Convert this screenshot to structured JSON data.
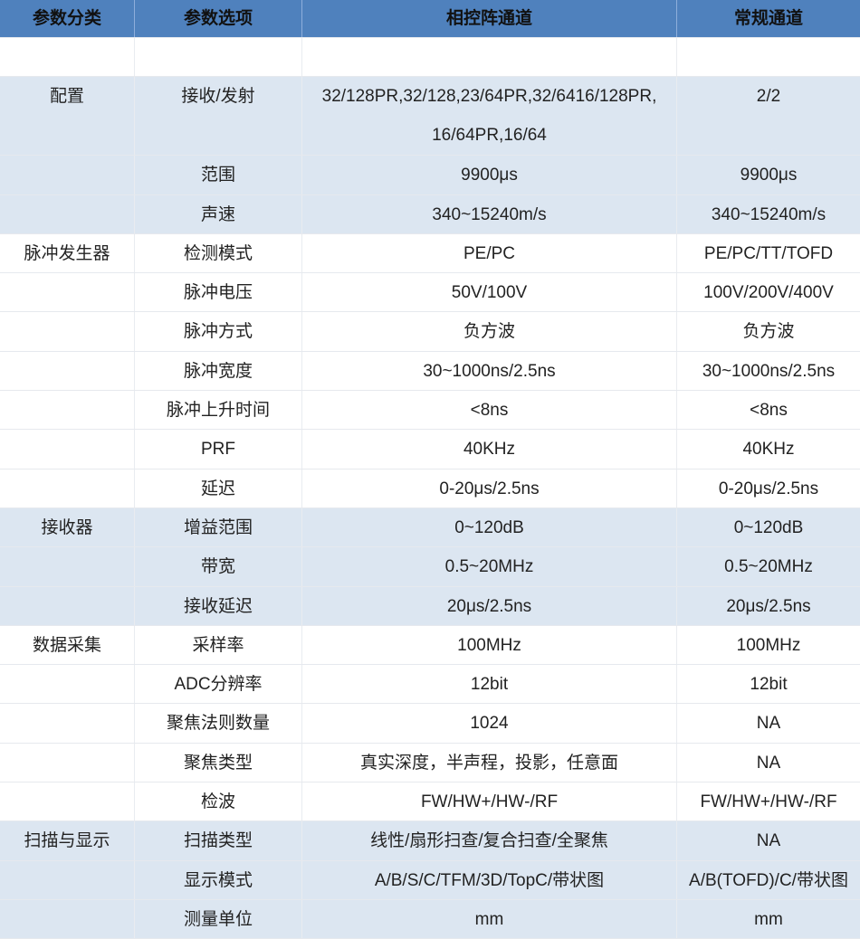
{
  "header": [
    "参数分类",
    "参数选项",
    "相控阵通道",
    "常规通道"
  ],
  "colors": {
    "header_bg": "#4f81bd",
    "band_bg": "#dce6f1",
    "plain_bg": "#ffffff"
  },
  "rows": [
    {
      "cat": "",
      "opt": "",
      "pa": "",
      "conv": "",
      "band": "white"
    },
    {
      "cat": "配置",
      "opt": "接收/发射",
      "pa": "32/128PR,32/128,23/64PR,32/6416/128PR, 16/64PR,16/64",
      "conv": "2/2",
      "band": "blue",
      "tall": true
    },
    {
      "cat": "",
      "opt": "范围",
      "pa": "9900μs",
      "conv": "9900μs",
      "band": "blue"
    },
    {
      "cat": "",
      "opt": "声速",
      "pa": "340~15240m/s",
      "conv": "340~15240m/s",
      "band": "blue"
    },
    {
      "cat": "脉冲发生器",
      "opt": "检测模式",
      "pa": "PE/PC",
      "conv": "PE/PC/TT/TOFD",
      "band": "white"
    },
    {
      "cat": "",
      "opt": "脉冲电压",
      "pa": "50V/100V",
      "conv": "100V/200V/400V",
      "band": "white"
    },
    {
      "cat": "",
      "opt": "脉冲方式",
      "pa": "负方波",
      "conv": "负方波",
      "band": "white"
    },
    {
      "cat": "",
      "opt": "脉冲宽度",
      "pa": "30~1000ns/2.5ns",
      "conv": "30~1000ns/2.5ns",
      "band": "white"
    },
    {
      "cat": "",
      "opt": "脉冲上升时间",
      "pa": "<8ns",
      "conv": "<8ns",
      "band": "white"
    },
    {
      "cat": "",
      "opt": "PRF",
      "pa": "40KHz",
      "conv": "40KHz",
      "band": "white"
    },
    {
      "cat": "",
      "opt": "延迟",
      "pa": "0-20μs/2.5ns",
      "conv": "0-20μs/2.5ns",
      "band": "white"
    },
    {
      "cat": "接收器",
      "opt": "增益范围",
      "pa": "0~120dB",
      "conv": "0~120dB",
      "band": "blue"
    },
    {
      "cat": "",
      "opt": "带宽",
      "pa": "0.5~20MHz",
      "conv": "0.5~20MHz",
      "band": "blue"
    },
    {
      "cat": "",
      "opt": "接收延迟",
      "pa": "20μs/2.5ns",
      "conv": "20μs/2.5ns",
      "band": "blue"
    },
    {
      "cat": "数据采集",
      "opt": "采样率",
      "pa": "100MHz",
      "conv": "100MHz",
      "band": "white"
    },
    {
      "cat": "",
      "opt": "ADC分辨率",
      "pa": "12bit",
      "conv": "12bit",
      "band": "white"
    },
    {
      "cat": "",
      "opt": "聚焦法则数量",
      "pa": "1024",
      "conv": "NA",
      "band": "white"
    },
    {
      "cat": "",
      "opt": "聚焦类型",
      "pa": "真实深度，半声程，投影，任意面",
      "conv": "NA",
      "band": "white"
    },
    {
      "cat": "",
      "opt": "检波",
      "pa": "FW/HW+/HW-/RF",
      "conv": "FW/HW+/HW-/RF",
      "band": "white"
    },
    {
      "cat": "扫描与显示",
      "opt": "扫描类型",
      "pa": "线性/扇形扫查/复合扫查/全聚焦",
      "conv": "NA",
      "band": "blue"
    },
    {
      "cat": "",
      "opt": "显示模式",
      "pa": "A/B/S/C/TFM/3D/TopC/带状图",
      "conv": "A/B(TOFD)/C/带状图",
      "band": "blue"
    },
    {
      "cat": "",
      "opt": "测量单位",
      "pa": "mm",
      "conv": "mm",
      "band": "blue"
    }
  ]
}
